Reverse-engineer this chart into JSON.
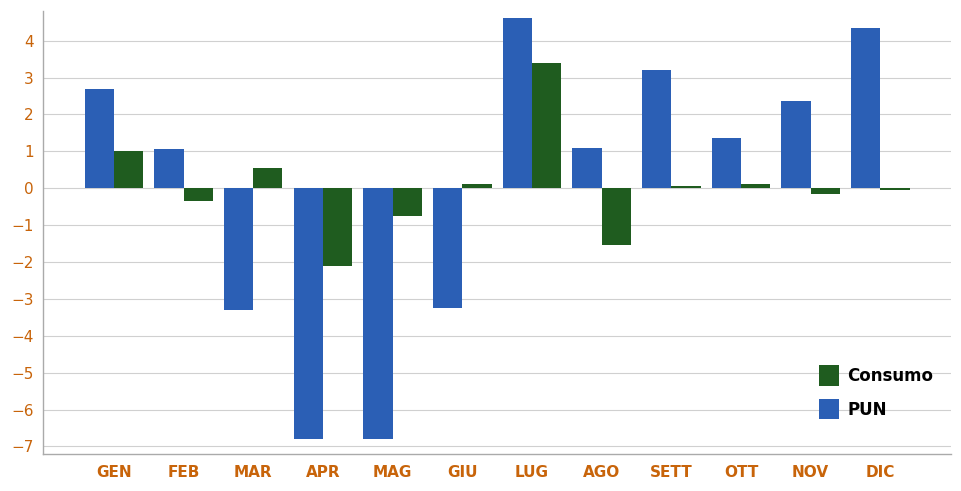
{
  "categories": [
    "GEN",
    "FEB",
    "MAR",
    "APR",
    "MAG",
    "GIU",
    "LUG",
    "AGO",
    "SETT",
    "OTT",
    "NOV",
    "DIC"
  ],
  "consumo": [
    1.0,
    -0.35,
    0.55,
    -2.1,
    -0.75,
    0.1,
    3.4,
    -1.55,
    0.05,
    0.1,
    -0.15,
    -0.05
  ],
  "pun": [
    2.7,
    1.05,
    -3.3,
    -6.8,
    -6.8,
    -3.25,
    4.6,
    1.1,
    3.2,
    1.35,
    2.35,
    4.35
  ],
  "consumo_color": "#1f5c1f",
  "pun_color": "#2b5fb5",
  "background_color": "#ffffff",
  "ylim": [
    -7.2,
    4.8
  ],
  "yticks": [
    -7,
    -6,
    -5,
    -4,
    -3,
    -2,
    -1,
    0,
    1,
    2,
    3,
    4
  ],
  "legend_labels": [
    "Consumo",
    "PUN"
  ],
  "bar_width": 0.42,
  "tick_color": "#c8640a",
  "tick_fontsize": 11,
  "legend_fontsize": 12
}
